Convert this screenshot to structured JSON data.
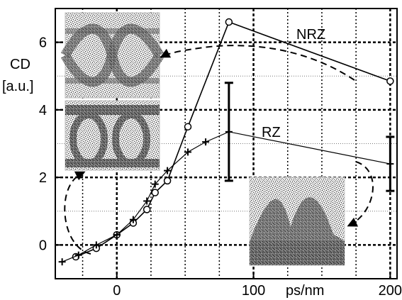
{
  "chart_data": {
    "type": "line",
    "title": "",
    "xlabel": "ps/nm",
    "ylabel_line1": "CD",
    "ylabel_line2": "[a.u.]",
    "xlim": [
      -45,
      205
    ],
    "ylim": [
      -1,
      7
    ],
    "x_ticks": [
      0,
      100,
      200
    ],
    "y_ticks": [
      0,
      2,
      4,
      6
    ],
    "grid": true,
    "series": [
      {
        "name": "NRZ",
        "marker": "circle",
        "x": [
          -30,
          -15,
          0,
          12,
          22,
          28,
          37,
          52,
          82,
          200
        ],
        "y": [
          -0.35,
          -0.1,
          0.3,
          0.65,
          1.05,
          1.55,
          1.9,
          3.5,
          6.6,
          4.85
        ]
      },
      {
        "name": "RZ",
        "marker": "plus",
        "x": [
          -40,
          -28,
          -15,
          0,
          12,
          22,
          28,
          37,
          52,
          65,
          82,
          200
        ],
        "y": [
          -0.5,
          -0.3,
          0.0,
          0.3,
          0.75,
          1.3,
          1.8,
          2.2,
          2.75,
          3.05,
          3.35,
          2.4
        ]
      }
    ],
    "error_bars": [
      {
        "x": 82,
        "low": 1.9,
        "high": 4.8
      },
      {
        "x": 200,
        "low": 1.6,
        "high": 3.2
      }
    ]
  }
}
